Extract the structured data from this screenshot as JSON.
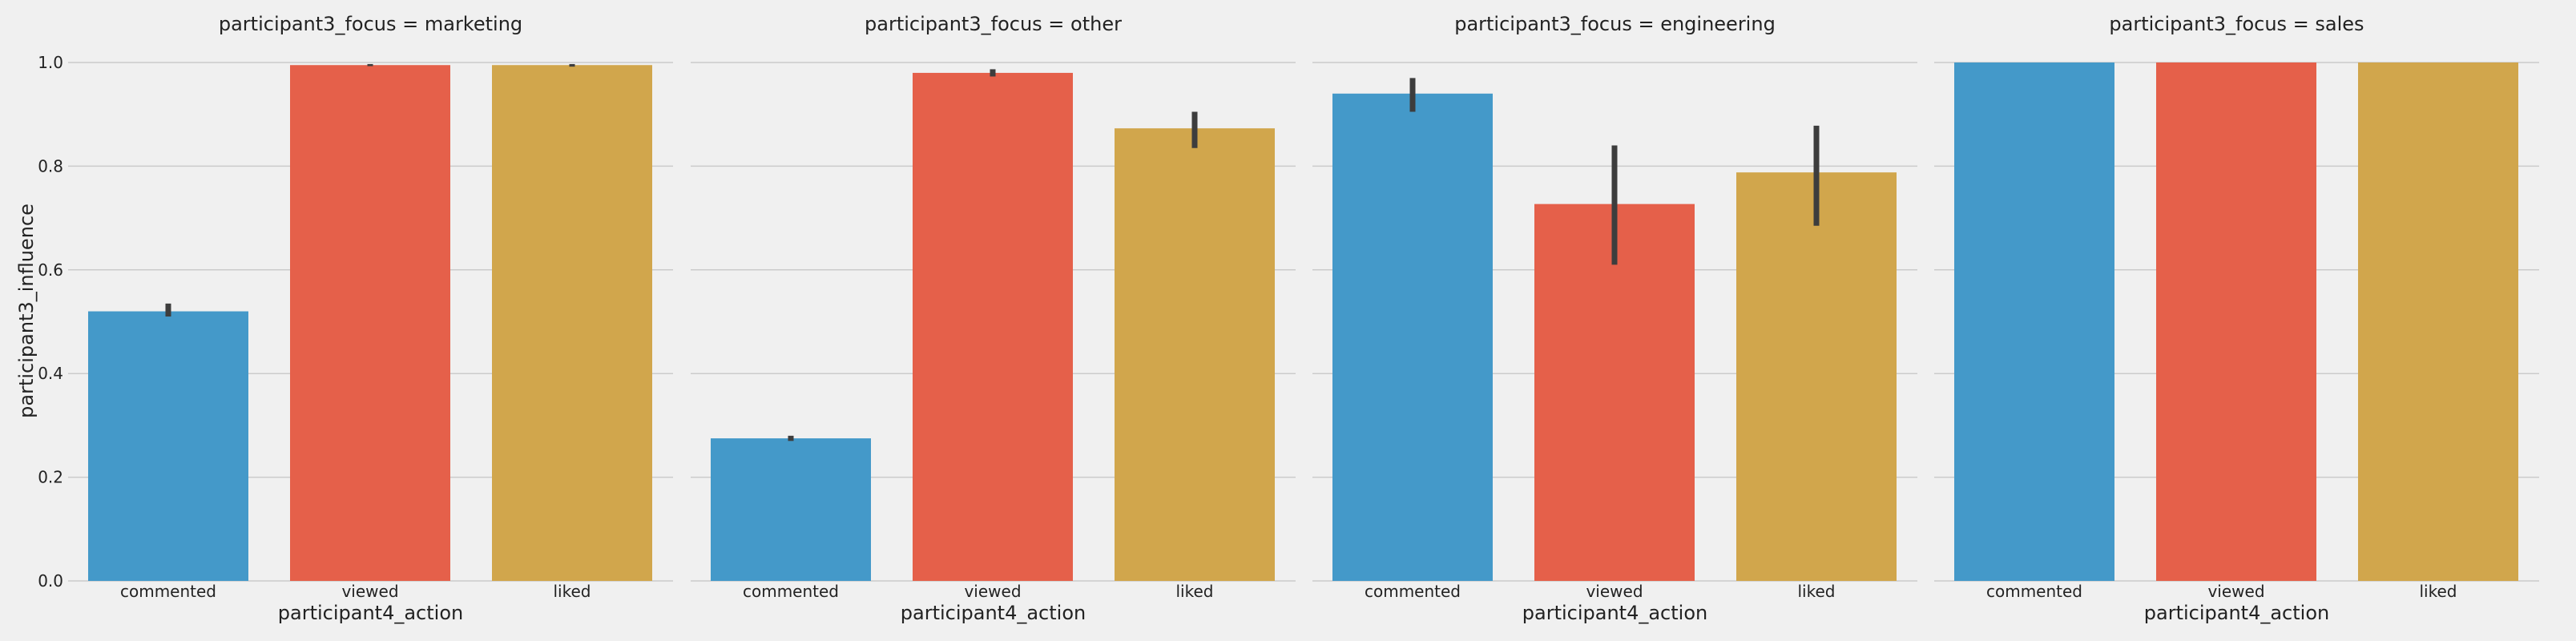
{
  "chart_data": {
    "type": "bar",
    "row_var": "participant3_focus",
    "xlabel": "participant4_action",
    "ylabel": "participant3_influence",
    "ylim": [
      0,
      1.0
    ],
    "yticks": [
      "0.0",
      "0.2",
      "0.4",
      "0.6",
      "0.8",
      "1.0"
    ],
    "ytick_values": [
      0,
      0.2,
      0.4,
      0.6,
      0.8,
      1.0
    ],
    "grid": true,
    "categories": [
      "commented",
      "viewed",
      "liked"
    ],
    "colors": [
      "#4499c9",
      "#e5604a",
      "#d1a64c"
    ],
    "error_bar_color": "#3d3d3d",
    "facets": [
      {
        "title": "participant3_focus = marketing",
        "values": [
          0.52,
          0.995,
          0.995
        ],
        "errors": [
          [
            0.51,
            0.535
          ],
          [
            0.993,
            0.997
          ],
          [
            0.992,
            0.997
          ]
        ]
      },
      {
        "title": "participant3_focus = other",
        "values": [
          0.275,
          0.98,
          0.873
        ],
        "errors": [
          [
            0.27,
            0.28
          ],
          [
            0.973,
            0.987
          ],
          [
            0.835,
            0.905
          ]
        ]
      },
      {
        "title": "participant3_focus = engineering",
        "values": [
          0.94,
          0.727,
          0.788
        ],
        "errors": [
          [
            0.905,
            0.97
          ],
          [
            0.61,
            0.84
          ],
          [
            0.685,
            0.878
          ]
        ]
      },
      {
        "title": "participant3_focus = sales",
        "values": [
          1.0,
          1.0,
          1.0
        ],
        "errors": [
          null,
          null,
          null
        ]
      }
    ]
  }
}
